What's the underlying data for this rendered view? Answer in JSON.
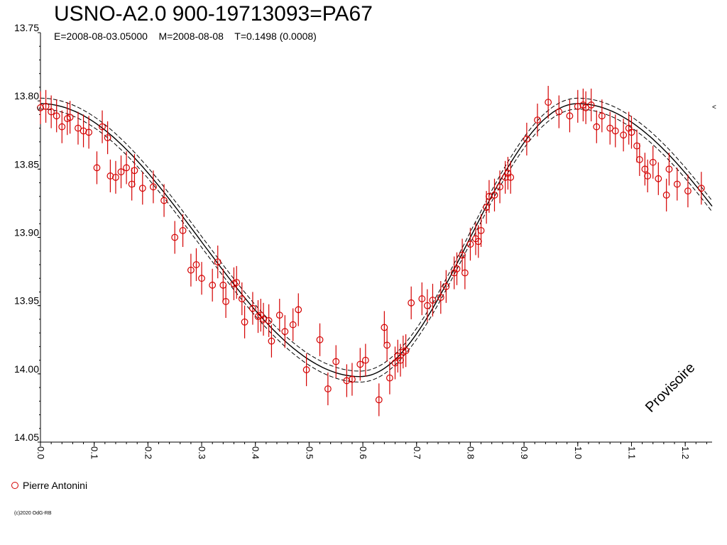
{
  "chart_data": {
    "type": "scatter",
    "title": "USNO-A2.0 900-19713093=PA67",
    "subtitle": "E=2008-08-03.05000    M=2008-08-08    T=0.1498 (0.0008)",
    "xlabel": "",
    "ylabel": "",
    "xlim": [
      0.0,
      1.25
    ],
    "ylim": [
      14.05,
      13.75
    ],
    "y_inverted": true,
    "x_ticks": [
      "0.0",
      "0.1",
      "0.2",
      "0.3",
      "0.4",
      "0.5",
      "0.6",
      "0.7",
      "0.8",
      "0.9",
      "1.0",
      "1.1",
      "1.2"
    ],
    "y_ticks": [
      "13.75",
      "13.80",
      "13.85",
      "13.90",
      "13.95",
      "14.00",
      "14.05"
    ],
    "model": {
      "max_mag": 13.802,
      "min_mag": 14.002,
      "min_phase": 0.595,
      "band": 0.004
    },
    "series": [
      {
        "name": "Pierre Antonini",
        "color": "#d40000",
        "x": [
          0.0,
          0.01,
          0.02,
          0.03,
          0.04,
          0.05,
          0.055,
          0.07,
          0.08,
          0.09,
          0.105,
          0.115,
          0.125,
          0.13,
          0.14,
          0.15,
          0.16,
          0.17,
          0.175,
          0.19,
          0.21,
          0.23,
          0.25,
          0.265,
          0.28,
          0.29,
          0.3,
          0.32,
          0.33,
          0.34,
          0.345,
          0.36,
          0.365,
          0.375,
          0.38,
          0.395,
          0.405,
          0.41,
          0.415,
          0.425,
          0.43,
          0.445,
          0.455,
          0.47,
          0.48,
          0.495,
          0.52,
          0.535,
          0.55,
          0.57,
          0.58,
          0.595,
          0.605,
          0.63,
          0.64,
          0.645,
          0.65,
          0.66,
          0.665,
          0.67,
          0.675,
          0.68,
          0.69,
          0.71,
          0.72,
          0.73,
          0.745,
          0.755,
          0.77,
          0.775,
          0.785,
          0.79,
          0.8,
          0.81,
          0.815,
          0.82,
          0.83,
          0.835,
          0.845,
          0.855,
          0.865,
          0.87,
          0.875,
          0.905,
          0.925,
          0.945,
          0.965,
          0.985,
          1.0,
          1.01,
          1.015,
          1.025,
          1.035,
          1.045,
          1.06,
          1.07,
          1.085,
          1.095,
          1.1,
          1.11,
          1.115,
          1.125,
          1.13,
          1.14,
          1.15,
          1.165,
          1.17,
          1.185,
          1.205,
          1.23
        ],
        "y": [
          13.805,
          13.804,
          13.808,
          13.811,
          13.819,
          13.813,
          13.812,
          13.82,
          13.822,
          13.823,
          13.849,
          13.819,
          13.827,
          13.855,
          13.856,
          13.852,
          13.849,
          13.861,
          13.851,
          13.864,
          13.863,
          13.873,
          13.9,
          13.895,
          13.924,
          13.92,
          13.93,
          13.935,
          13.918,
          13.935,
          13.947,
          13.934,
          13.933,
          13.945,
          13.962,
          13.952,
          13.958,
          13.957,
          13.96,
          13.961,
          13.976,
          13.957,
          13.969,
          13.964,
          13.953,
          13.997,
          13.975,
          14.011,
          13.991,
          14.005,
          14.004,
          13.993,
          13.99,
          14.019,
          13.966,
          13.979,
          14.003,
          13.992,
          13.987,
          13.99,
          13.984,
          13.983,
          13.948,
          13.945,
          13.95,
          13.946,
          13.944,
          13.936,
          13.926,
          13.923,
          13.913,
          13.926,
          13.905,
          13.901,
          13.903,
          13.895,
          13.878,
          13.87,
          13.869,
          13.863,
          13.856,
          13.853,
          13.856,
          13.828,
          13.814,
          13.801,
          13.808,
          13.811,
          13.804,
          13.803,
          13.805,
          13.803,
          13.819,
          13.811,
          13.82,
          13.822,
          13.825,
          13.82,
          13.823,
          13.833,
          13.843,
          13.85,
          13.855,
          13.845,
          13.857,
          13.869,
          13.85,
          13.861,
          13.866,
          13.864
        ],
        "err": 0.012
      }
    ]
  },
  "legend": {
    "label": "Pierre Antonini"
  },
  "footer": {
    "copyright": "(c)2020 OdG-RB"
  },
  "watermark": "Provisoire",
  "axis_markers": {
    "left": "v",
    "right": "<"
  }
}
